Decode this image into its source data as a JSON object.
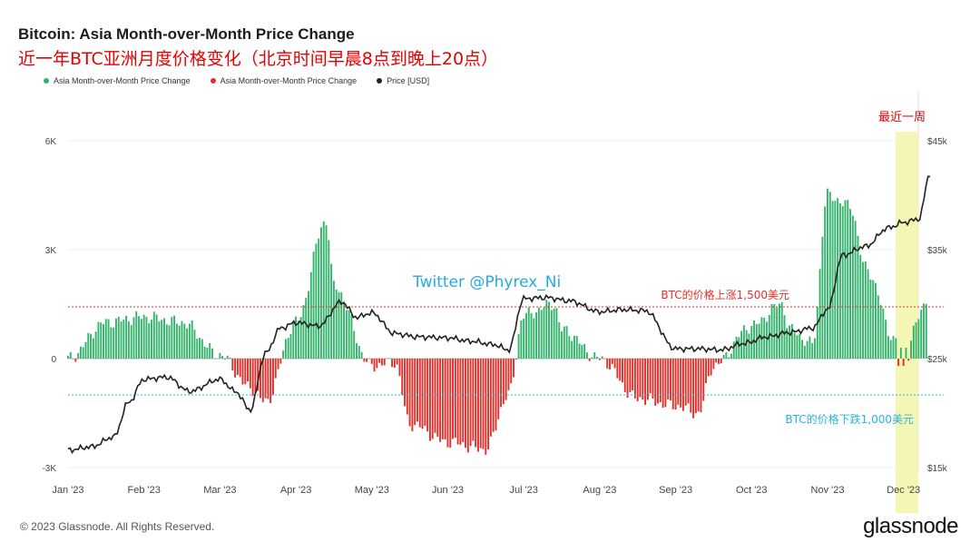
{
  "header": {
    "title": "Bitcoin: Asia Month-over-Month Price Change",
    "subtitle": "近一年BTC亚洲月度价格变化（北京时间早晨8点到晚上20点）"
  },
  "footer": {
    "copyright": "© 2023 Glassnode. All Rights Reserved.",
    "brand": "glassnode"
  },
  "colors": {
    "positive": "#33b36b",
    "negative": "#e0302b",
    "price": "#222222",
    "upper_line": "#e0302b",
    "lower_line": "#27b5d6",
    "highlight": "#f3f6b4"
  },
  "chart_data": {
    "type": "bar",
    "title": "Bitcoin: Asia Month-over-Month Price Change",
    "legend": [
      "Asia Month-over-Month Price Change",
      "Asia Month-over-Month Price Change",
      "Price [USD]"
    ],
    "x_ticks": [
      "Jan '23",
      "Feb '23",
      "Mar '23",
      "Apr '23",
      "May '23",
      "Jun '23",
      "Jul '23",
      "Aug '23",
      "Sep '23",
      "Oct '23",
      "Nov '23",
      "Dec '23"
    ],
    "left_axis": {
      "ticks": [
        "6K",
        "3K",
        "0",
        "-3K"
      ],
      "ylim": [
        -3000,
        6000
      ]
    },
    "right_axis": {
      "ticks": [
        "$45k",
        "$35k",
        "$25k",
        "$15k"
      ],
      "ylim": [
        15000,
        45000
      ]
    },
    "mom_change": {
      "months": [
        0,
        0.5,
        1,
        1.5,
        2,
        2.4,
        2.6,
        3,
        3.4,
        3.5,
        4,
        4.3,
        4.5,
        5,
        5.5,
        5.8,
        6,
        6.4,
        6.5,
        7,
        7.5,
        8,
        8.3,
        8.5,
        9,
        9.4,
        9.5,
        9.8,
        10,
        10.3,
        10.5,
        10.9,
        11,
        11.2,
        11.3
      ],
      "values": [
        0,
        1000,
        1150,
        1000,
        100,
        -800,
        -1200,
        1000,
        3800,
        2000,
        -200,
        -100,
        -1800,
        -2300,
        -2500,
        -1000,
        1200,
        1500,
        800,
        0,
        -1100,
        -1300,
        -1500,
        -200,
        900,
        1500,
        800,
        400,
        4500,
        4200,
        2500,
        500,
        -200,
        1100,
        1700
      ]
    },
    "price": {
      "months": [
        0,
        0.3,
        0.6,
        0.8,
        1,
        1.3,
        1.6,
        2,
        2.2,
        2.4,
        2.6,
        2.8,
        3,
        3.3,
        3.6,
        3.8,
        4,
        4.3,
        4.6,
        5,
        5.3,
        5.6,
        5.8,
        6,
        6.3,
        6.6,
        7,
        7.3,
        7.6,
        8,
        8.3,
        8.6,
        8.9,
        9.2,
        9.5,
        9.8,
        10,
        10.2,
        10.5,
        10.8,
        11,
        11.2,
        11.35
      ],
      "values": [
        16600,
        16900,
        17800,
        21000,
        23100,
        23300,
        22000,
        23100,
        22000,
        20300,
        25500,
        27800,
        28300,
        28000,
        30200,
        28800,
        29200,
        27300,
        27000,
        26900,
        26600,
        26300,
        25800,
        30500,
        30600,
        30300,
        29300,
        29500,
        29400,
        25900,
        25900,
        25800,
        26400,
        27000,
        27400,
        27800,
        29500,
        34500,
        35300,
        37000,
        37500,
        37800,
        42000
      ]
    },
    "annotations": [
      {
        "text": "BTC的价格上涨1,500美元",
        "value": 1500
      },
      {
        "text": "BTC的价格下跌1,000美元",
        "value": -1000
      },
      {
        "text": "Twitter @Phyrex_Ni"
      },
      {
        "text": "最近一周"
      }
    ]
  }
}
